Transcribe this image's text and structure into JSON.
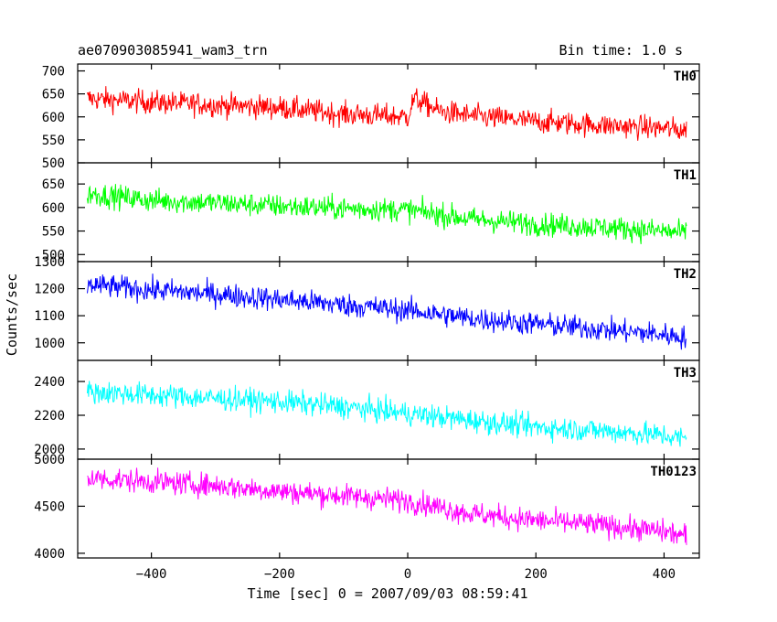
{
  "chart_data": {
    "type": "line",
    "title": "ae070903085941_wam3_trn",
    "subtitle": "Bin time: 1.0 s",
    "xlabel": "Time [sec] 0 = 2007/09/03 08:59:41",
    "ylabel": "Counts/sec",
    "xlim": [
      -515,
      455
    ],
    "xticks": [
      -400,
      -200,
      0,
      200,
      400
    ],
    "x_step": 1.0,
    "grid": false,
    "legend": "none",
    "panels": [
      {
        "name": "TH0",
        "color": "#ff0000",
        "ylim": [
          500,
          715
        ],
        "yticks": [
          500,
          550,
          600,
          650,
          700
        ],
        "series": [
          {
            "name": "TH0",
            "x": [
              -500,
              -400,
              -300,
              -200,
              -100,
              0,
              10,
              50,
              100,
              200,
              300,
              400,
              435
            ],
            "y": [
              640,
              632,
              626,
              620,
              606,
              600,
              640,
              612,
              602,
              590,
              582,
              575,
              570
            ]
          }
        ]
      },
      {
        "name": "TH1",
        "color": "#00ff00",
        "ylim": [
          485,
          695
        ],
        "yticks": [
          500,
          550,
          600,
          650
        ],
        "series": [
          {
            "name": "TH1",
            "x": [
              -500,
              -400,
              -300,
              -200,
              -100,
              0,
              100,
              200,
              300,
              400,
              435
            ],
            "y": [
              630,
              615,
              610,
              603,
              598,
              595,
              575,
              565,
              558,
              550,
              545
            ]
          }
        ]
      },
      {
        "name": "TH2",
        "color": "#0000ff",
        "ylim": [
          935,
          1300
        ],
        "yticks": [
          1000,
          1100,
          1200,
          1300
        ],
        "series": [
          {
            "name": "TH2",
            "x": [
              -500,
              -400,
              -300,
              -200,
              -100,
              0,
              100,
              200,
              300,
              400,
              435
            ],
            "y": [
              1215,
              1195,
              1180,
              1160,
              1140,
              1120,
              1090,
              1070,
              1050,
              1030,
              1020
            ]
          }
        ]
      },
      {
        "name": "TH3",
        "color": "#00ffff",
        "ylim": [
          1940,
          2525
        ],
        "yticks": [
          2000,
          2200,
          2400
        ],
        "series": [
          {
            "name": "TH3",
            "x": [
              -500,
              -400,
              -300,
              -200,
              -100,
              0,
              100,
              200,
              300,
              400,
              435
            ],
            "y": [
              2340,
              2320,
              2300,
              2280,
              2250,
              2210,
              2170,
              2130,
              2110,
              2080,
              2060
            ]
          }
        ]
      },
      {
        "name": "TH0123",
        "color": "#ff00ff",
        "ylim": [
          3950,
          5000
        ],
        "yticks": [
          4000,
          4500,
          5000
        ],
        "series": [
          {
            "name": "TH0123",
            "x": [
              -500,
              -400,
              -300,
              -200,
              -100,
              0,
              100,
              200,
              300,
              400,
              435
            ],
            "y": [
              4800,
              4760,
              4720,
              4660,
              4610,
              4560,
              4420,
              4350,
              4300,
              4230,
              4180
            ]
          }
        ]
      }
    ]
  }
}
